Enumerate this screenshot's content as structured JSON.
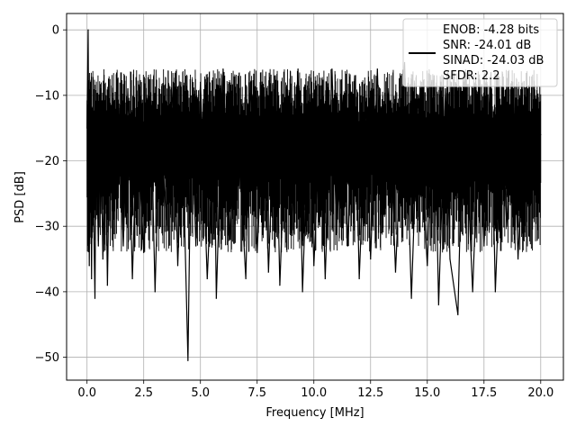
{
  "chart_data": {
    "type": "line",
    "title": "",
    "xlabel": "Frequency [MHz]",
    "ylabel": "PSD [dB]",
    "xlim": [
      -0.9,
      21.0
    ],
    "ylim": [
      -53.5,
      2.5
    ],
    "xticks": [
      0.0,
      2.5,
      5.0,
      7.5,
      10.0,
      12.5,
      15.0,
      17.5,
      20.0
    ],
    "xtick_labels": [
      "0.0",
      "2.5",
      "5.0",
      "7.5",
      "10.0",
      "12.5",
      "15.0",
      "17.5",
      "20.0"
    ],
    "yticks": [
      0,
      -10,
      -20,
      -30,
      -40,
      -50
    ],
    "ytick_labels": [
      "0",
      "−10",
      "−20",
      "−30",
      "−40",
      "−50"
    ],
    "grid": true,
    "legend": {
      "placement": "top-right",
      "lines": [
        "ENOB: -4.28 bits",
        "SNR: -24.01 dB",
        "SINAD: -24.03 dB",
        "SFDR: 2.2"
      ]
    },
    "series": [
      {
        "color": "#000000",
        "x": [
          0.0,
          0.05,
          0.1,
          0.15,
          0.2,
          0.25,
          0.3,
          0.35,
          0.4,
          0.5,
          0.6,
          0.7,
          0.8,
          0.9,
          1.0,
          1.2,
          1.4,
          1.6,
          1.8,
          2.0,
          2.2,
          2.5,
          2.8,
          3.0,
          3.2,
          3.5,
          3.8,
          4.0,
          4.2,
          4.45,
          4.6,
          4.8,
          5.0,
          5.3,
          5.6,
          5.7,
          6.0,
          6.3,
          6.6,
          7.0,
          7.2,
          7.5,
          7.8,
          8.0,
          8.3,
          8.5,
          8.8,
          9.0,
          9.3,
          9.5,
          9.8,
          10.0,
          10.3,
          10.5,
          10.8,
          11.0,
          11.3,
          11.5,
          11.8,
          12.0,
          12.3,
          12.5,
          12.8,
          13.0,
          13.3,
          13.6,
          14.0,
          14.3,
          14.6,
          15.0,
          15.3,
          15.5,
          15.8,
          16.0,
          16.35,
          16.6,
          17.0,
          17.3,
          17.5,
          17.8,
          18.0,
          18.3,
          18.5,
          18.8,
          19.0,
          19.3,
          19.5,
          19.8,
          20.0
        ],
        "y": [
          -15,
          0,
          -36,
          -8,
          -38,
          -12,
          -30,
          -41,
          -15,
          -33,
          -14,
          -35,
          -11,
          -39,
          -16,
          -27,
          -12,
          -33,
          -9,
          -38,
          -14,
          -34,
          -10,
          -40,
          -13,
          -29,
          -8,
          -36,
          -15,
          -50.5,
          -12,
          -33,
          -8,
          -38,
          -14,
          -41,
          -6,
          -32,
          -12,
          -38,
          -8,
          -34,
          -11,
          -37,
          -7,
          -39,
          -10,
          -31,
          -6,
          -40,
          -9,
          -36,
          -12,
          -38,
          -6,
          -31,
          -10,
          -33,
          -7,
          -38,
          -11,
          -35,
          -6,
          -30,
          -9,
          -37,
          -5,
          -41,
          -10,
          -36,
          -7,
          -42,
          -9,
          -35,
          -43.5,
          -8,
          -40,
          -11,
          -33,
          -7,
          -40,
          -12,
          -30,
          -9,
          -35,
          -10,
          -28,
          -16,
          -16
        ]
      }
    ]
  }
}
